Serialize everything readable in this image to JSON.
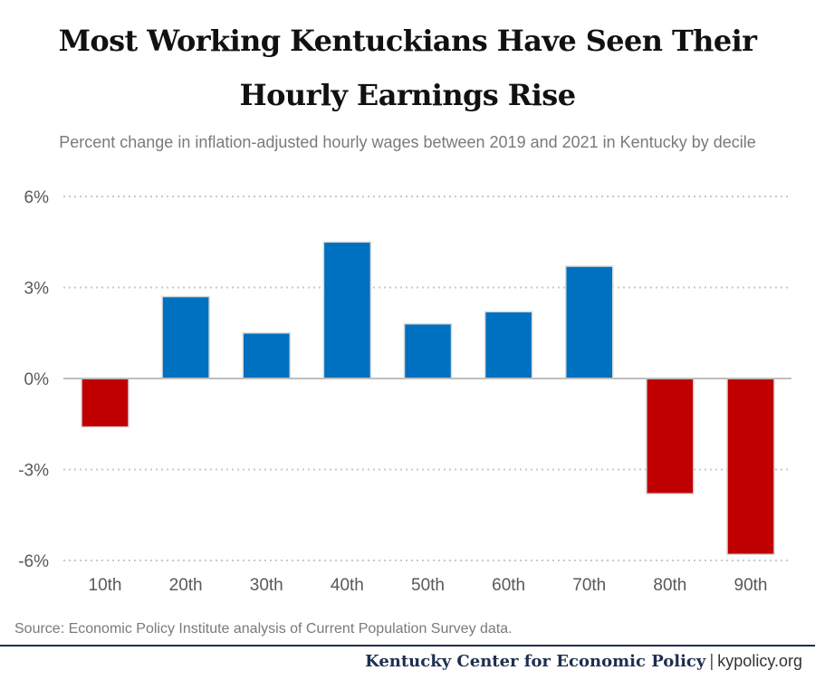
{
  "header": {
    "title_line1": "Most Working Kentuckians Have Seen Their",
    "title_line2": "Hourly Earnings Rise",
    "subtitle": "Percent change in inflation-adjusted hourly wages between 2019 and 2021 in Kentucky by decile"
  },
  "chart_data": {
    "type": "bar",
    "categories": [
      "10th",
      "20th",
      "30th",
      "40th",
      "50th",
      "60th",
      "70th",
      "80th",
      "90th"
    ],
    "values": [
      -1.6,
      2.7,
      1.5,
      4.5,
      1.8,
      2.2,
      3.7,
      -3.8,
      -5.8
    ],
    "ylim": [
      -6,
      6
    ],
    "yticks": [
      6,
      3,
      0,
      -3,
      -6
    ],
    "ytick_labels": [
      "6%",
      "3%",
      "0%",
      "-3%",
      "-6%"
    ],
    "xlabel": "",
    "ylabel": "",
    "grid": true,
    "colors": {
      "positive": "#0070c0",
      "negative": "#c00000",
      "grid": "#c8c8c8",
      "tick_text": "#595959"
    }
  },
  "footer": {
    "source": "Source: Economic Policy Institute analysis of Current Population Survey data.",
    "org": "Kentucky Center for Economic Policy",
    "separator": "|",
    "site": "kypolicy.org"
  }
}
